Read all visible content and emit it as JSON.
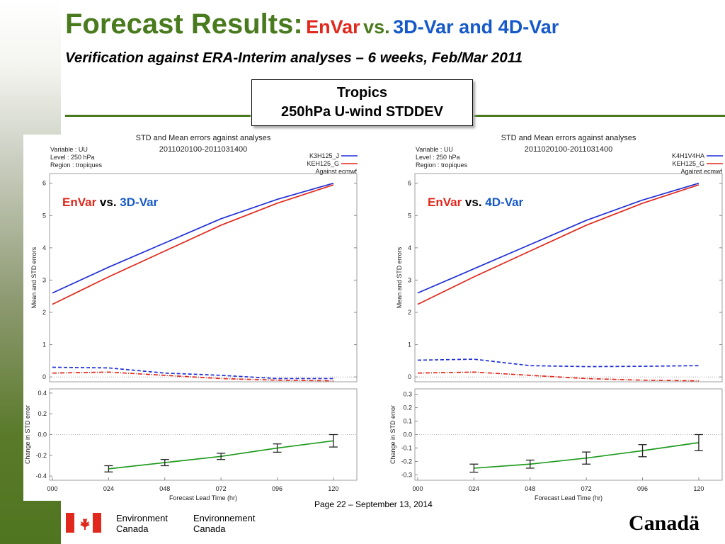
{
  "slide": {
    "title_main": "Forecast Results:",
    "title_envar": "EnVar",
    "title_vs": "vs.",
    "title_rest": "3D-Var and 4D-Var",
    "subtitle": "Verification against ERA-Interim analyses – 6 weeks, Feb/Mar 2011",
    "box_line1": "Tropics",
    "box_line2": "250hPa U-wind STDDEV",
    "footer": "Page 22 – September 13, 2014",
    "dept_en_1": "Environment",
    "dept_en_2": "Canada",
    "dept_fr_1": "Environnement",
    "dept_fr_2": "Canada",
    "wordmark": "Canadä",
    "colors": {
      "green": "#4a7a1e",
      "red": "#e0281c",
      "blue": "#1659c8"
    }
  },
  "chart_data": [
    {
      "type": "line",
      "title": "STD and Mean errors against analyses",
      "period": "2011020100-2011031400",
      "info": [
        "Variable : UU",
        "Level : 250 hPa",
        "Region : tropiques"
      ],
      "overlay": {
        "a": "EnVar",
        "vs": "vs.",
        "b": "3D-Var"
      },
      "legend": [
        "K3H125_J",
        "KEH125_G",
        "Against ecmwf"
      ],
      "x": [
        "000",
        "024",
        "048",
        "072",
        "096",
        "120"
      ],
      "xlabel": "Forecast Lead Time (hr)",
      "top": {
        "ylabel": "Mean and STD errors",
        "ylim": [
          -0.15,
          6.3
        ],
        "yticks": [
          "0",
          "1",
          "2",
          "3",
          "4",
          "5",
          "6"
        ],
        "series": [
          {
            "name": "K3H125_J",
            "style": "solid",
            "color": "#1f2fd6",
            "values": [
              2.6,
              3.4,
              4.15,
              4.9,
              5.5,
              6.0
            ]
          },
          {
            "name": "KEH125_G",
            "style": "solid",
            "color": "#e0281c",
            "values": [
              2.25,
              3.1,
              3.9,
              4.7,
              5.38,
              5.95
            ]
          },
          {
            "name": "K3H125_J",
            "style": "dashed",
            "color": "#1f2fd6",
            "values": [
              0.3,
              0.28,
              0.12,
              0.05,
              -0.05,
              -0.05
            ]
          },
          {
            "name": "KEH125_G",
            "style": "dashdot",
            "color": "#e0281c",
            "values": [
              0.12,
              0.15,
              0.05,
              -0.05,
              -0.1,
              -0.12
            ]
          }
        ]
      },
      "bottom": {
        "ylabel": "Change in STD error",
        "ylim": [
          -0.44,
          0.44
        ],
        "yticks": [
          "0.4",
          "0.2",
          "0.0",
          "-0.2",
          "-0.4"
        ],
        "series": [
          {
            "name": "difference",
            "color": "#1f9a1f",
            "x": [
              "024",
              "048",
              "072",
              "096",
              "120"
            ],
            "values": [
              -0.33,
              -0.27,
              -0.21,
              -0.13,
              -0.06
            ],
            "err": [
              0.03,
              0.03,
              0.03,
              0.04,
              0.06
            ]
          }
        ]
      }
    },
    {
      "type": "line",
      "title": "STD and Mean errors against analyses",
      "period": "2011020100-2011031400",
      "info": [
        "Variable : UU",
        "Level : 250 hPa",
        "Region : tropiques"
      ],
      "overlay": {
        "a": "EnVar",
        "vs": "vs.",
        "b": "4D-Var"
      },
      "legend": [
        "K4H1V4HA",
        "KEH125_G",
        "Against ecmwf"
      ],
      "x": [
        "000",
        "024",
        "048",
        "072",
        "096",
        "120"
      ],
      "xlabel": "Forecast Lead Time (hr)",
      "top": {
        "ylabel": "Mean and STD errors",
        "ylim": [
          -0.15,
          6.3
        ],
        "yticks": [
          "0",
          "1",
          "2",
          "3",
          "4",
          "5",
          "6"
        ],
        "series": [
          {
            "name": "K4H1V4HA",
            "style": "solid",
            "color": "#1f2fd6",
            "values": [
              2.6,
              3.35,
              4.1,
              4.85,
              5.48,
              6.0
            ]
          },
          {
            "name": "KEH125_G",
            "style": "solid",
            "color": "#e0281c",
            "values": [
              2.25,
              3.1,
              3.9,
              4.7,
              5.38,
              5.95
            ]
          },
          {
            "name": "K4H1V4HA",
            "style": "dashed",
            "color": "#1f2fd6",
            "values": [
              0.52,
              0.55,
              0.35,
              0.32,
              0.33,
              0.35
            ]
          },
          {
            "name": "KEH125_G",
            "style": "dashdot",
            "color": "#e0281c",
            "values": [
              0.12,
              0.15,
              0.05,
              -0.05,
              -0.1,
              -0.12
            ]
          }
        ]
      },
      "bottom": {
        "ylabel": "Change in STD error",
        "ylim": [
          -0.34,
          0.34
        ],
        "yticks": [
          "0.3",
          "0.2",
          "0.1",
          "0.0",
          "-0.1",
          "-0.2",
          "-0.3"
        ],
        "series": [
          {
            "name": "difference",
            "color": "#1f9a1f",
            "x": [
              "024",
              "048",
              "072",
              "096",
              "120"
            ],
            "values": [
              -0.25,
              -0.22,
              -0.175,
              -0.12,
              -0.06
            ],
            "err": [
              0.03,
              0.03,
              0.045,
              0.045,
              0.06
            ]
          }
        ]
      }
    }
  ]
}
